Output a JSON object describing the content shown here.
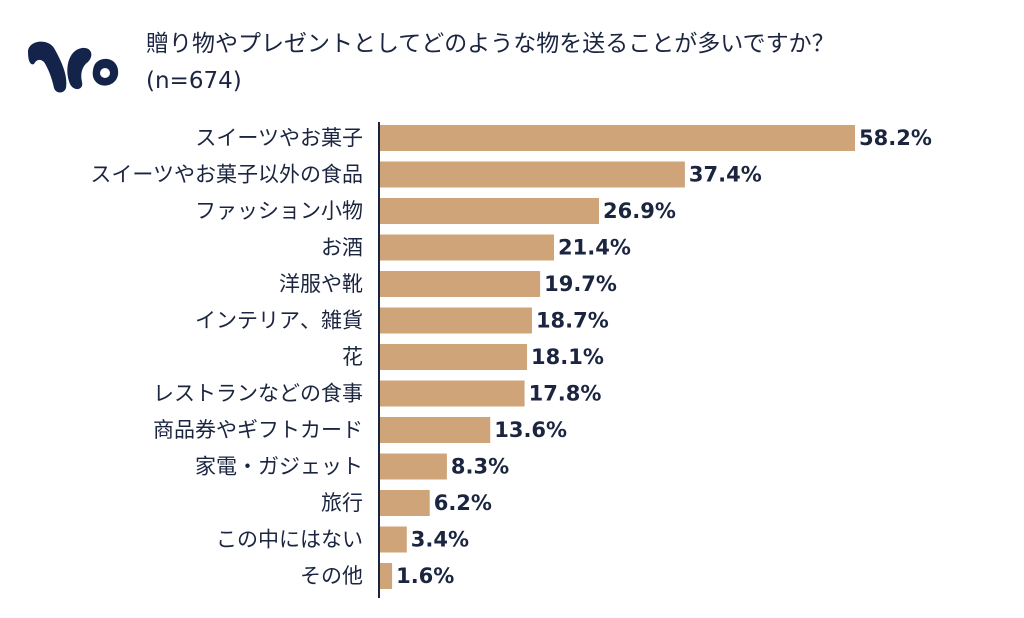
{
  "brand": {
    "logo_icon": "brand-logo-icon",
    "color": "#13234a"
  },
  "header": {
    "title": "贈り物やプレゼントとしてどのような物を送ることが多いですか？",
    "subtitle": "(n=674)"
  },
  "colors": {
    "bar": "#cfa478",
    "text": "#1b2540",
    "axis": "#1b2540"
  },
  "chart_data": {
    "type": "bar",
    "orientation": "horizontal",
    "title": "贈り物やプレゼントとしてどのような物を送ることが多いですか？",
    "subtitle": "(n=674)",
    "unit": "%",
    "categories": [
      "スイーツやお菓子",
      "スイーツやお菓子以外の食品",
      "ファッション小物",
      "お酒",
      "洋服や靴",
      "インテリア、雑貨",
      "花",
      "レストランなどの食事",
      "商品券やギフトカード",
      "家電・ガジェット",
      "旅行",
      "この中にはない",
      "その他"
    ],
    "values": [
      58.2,
      37.4,
      26.9,
      21.4,
      19.7,
      18.7,
      18.1,
      17.8,
      13.6,
      8.3,
      6.2,
      3.4,
      1.6
    ],
    "value_labels": [
      "58.2%",
      "37.4%",
      "26.9%",
      "21.4%",
      "19.7%",
      "18.7%",
      "18.1%",
      "17.8%",
      "13.6%",
      "8.3%",
      "6.2%",
      "3.4%",
      "1.6%"
    ],
    "xlim": [
      0,
      60
    ],
    "grid": false,
    "legend": "none"
  }
}
